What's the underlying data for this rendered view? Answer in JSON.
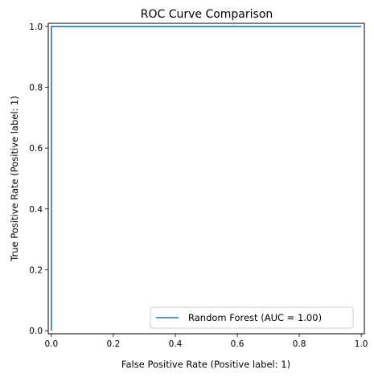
{
  "chart_data": {
    "type": "line",
    "title": "ROC Curve Comparison",
    "xlabel": "False Positive Rate (Positive label: 1)",
    "ylabel": "True Positive Rate (Positive label: 1)",
    "xlim": [
      -0.01,
      1.01
    ],
    "ylim": [
      -0.01,
      1.01
    ],
    "xticks": [
      0.0,
      0.2,
      0.4,
      0.6,
      0.8,
      1.0
    ],
    "yticks": [
      0.0,
      0.2,
      0.4,
      0.6,
      0.8,
      1.0
    ],
    "xtick_labels": [
      "0.0",
      "0.2",
      "0.4",
      "0.6",
      "0.8",
      "1.0"
    ],
    "ytick_labels": [
      "0.0",
      "0.2",
      "0.4",
      "0.6",
      "0.8",
      "1.0"
    ],
    "grid": false,
    "legend_position": "bottom-right",
    "series": [
      {
        "name": "Random Forest (AUC = 1.00)",
        "color": "#1f77b4",
        "x": [
          0.0,
          0.0,
          1.0
        ],
        "y": [
          0.0,
          1.0,
          1.0
        ]
      }
    ]
  }
}
